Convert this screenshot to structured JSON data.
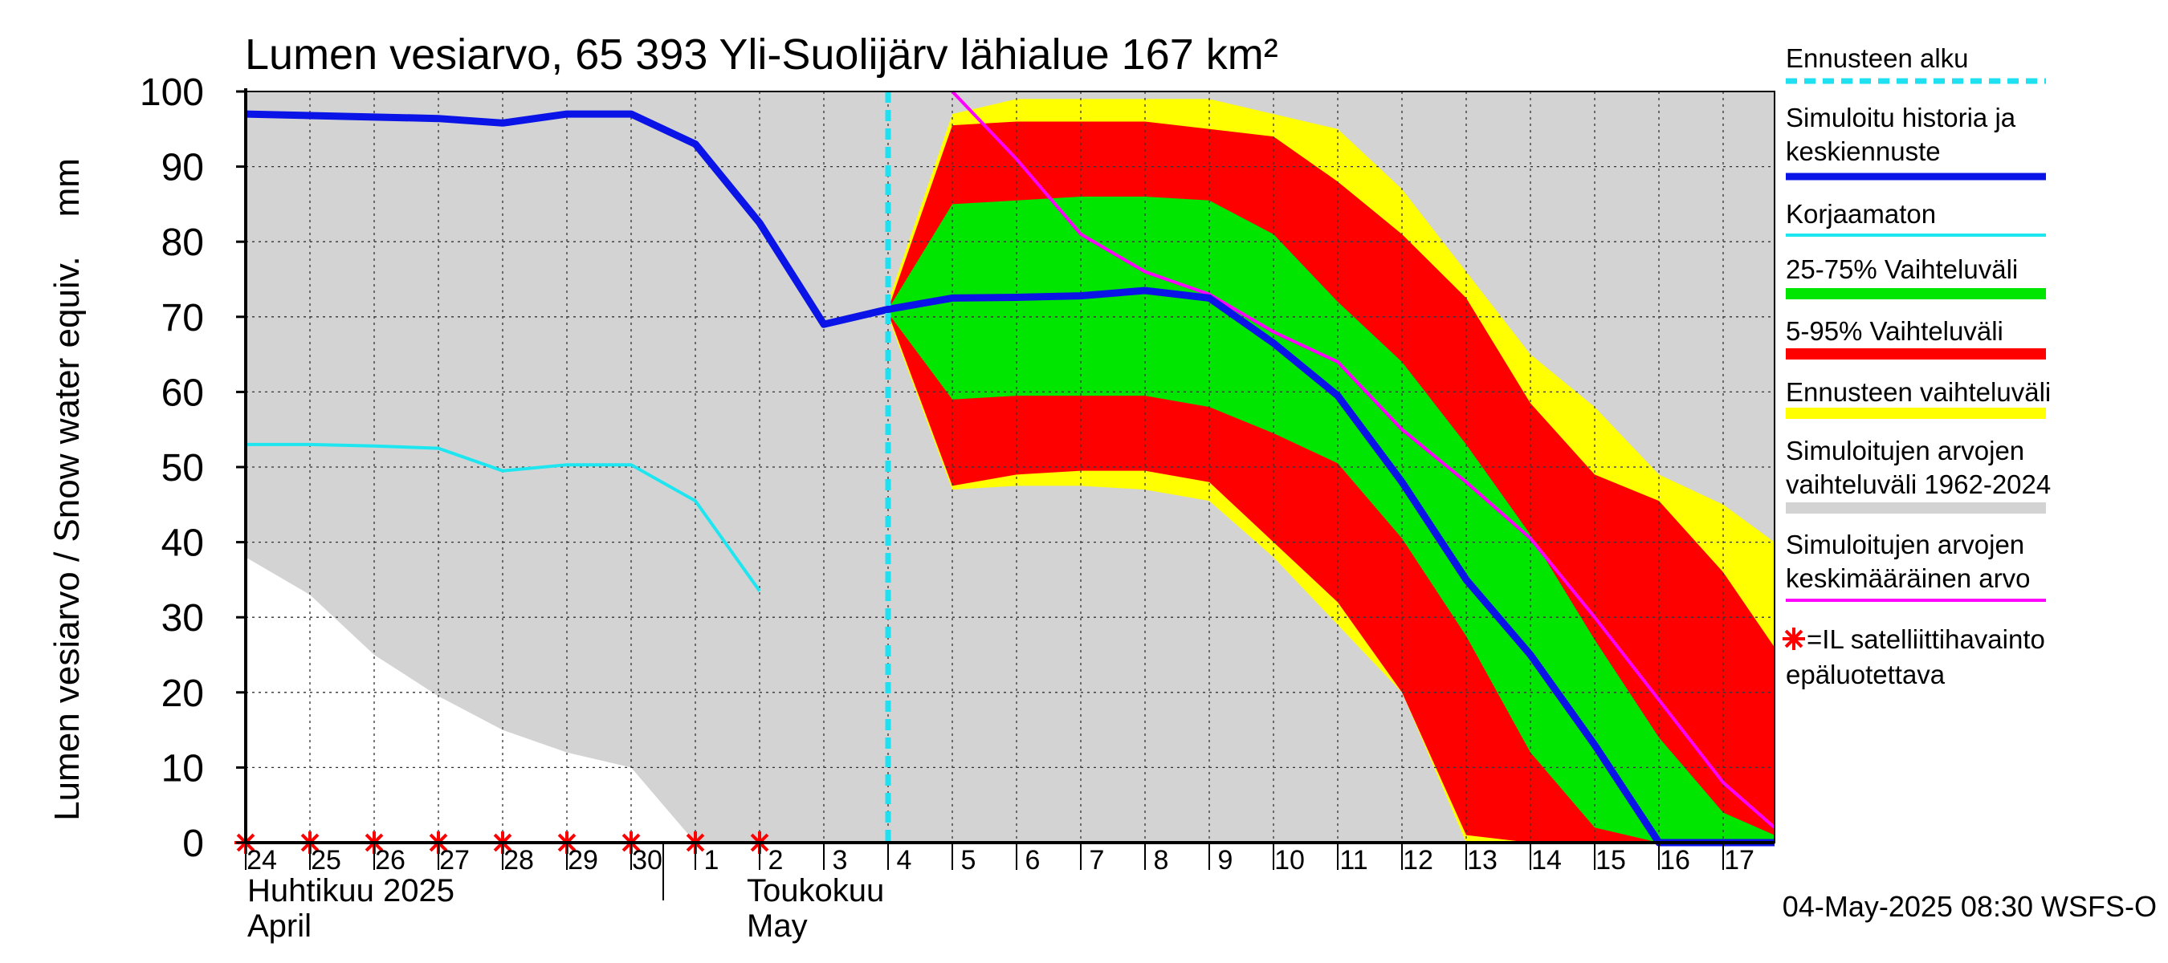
{
  "chart_data": {
    "type": "area",
    "title": "Lumen vesiarvo, 65 393 Yli-Suolijärv lähialue 167 km²",
    "ylabel": "Lumen vesiarvo / Snow water equiv.    mm",
    "ylim": [
      0,
      100
    ],
    "yticks": [
      0,
      10,
      20,
      30,
      40,
      50,
      60,
      70,
      80,
      90,
      100
    ],
    "x_day_labels": [
      "24",
      "25",
      "26",
      "27",
      "28",
      "29",
      "30",
      "1",
      "2",
      "3",
      "4",
      "5",
      "6",
      "7",
      "8",
      "9",
      "10",
      "11",
      "12",
      "13",
      "14",
      "15",
      "16",
      "17"
    ],
    "month_labels": [
      {
        "fi": "Huhtikuu  2025",
        "en": "April"
      },
      {
        "fi": "Toukokuu",
        "en": "May"
      }
    ],
    "forecast_start_x": 10,
    "series": {
      "historical_range": {
        "upper": [
          [
            0,
            100
          ],
          [
            23.8,
            100
          ]
        ],
        "lower": [
          [
            0,
            38
          ],
          [
            1,
            33
          ],
          [
            2,
            25
          ],
          [
            3,
            19.5
          ],
          [
            4,
            15
          ],
          [
            5,
            12
          ],
          [
            6,
            10
          ],
          [
            7,
            0
          ],
          [
            23.8,
            0
          ]
        ]
      },
      "forecast_range_yellow": {
        "upper": [
          [
            10,
            72
          ],
          [
            11,
            97
          ],
          [
            12,
            99
          ],
          [
            13,
            99
          ],
          [
            14,
            99
          ],
          [
            15,
            99
          ],
          [
            16,
            97
          ],
          [
            17,
            95
          ],
          [
            18,
            87
          ],
          [
            19,
            76
          ],
          [
            20,
            65
          ],
          [
            21,
            58
          ],
          [
            22,
            49
          ],
          [
            23,
            45
          ],
          [
            23.8,
            40
          ]
        ],
        "lower": [
          [
            10,
            70
          ],
          [
            11,
            47
          ],
          [
            12,
            47.5
          ],
          [
            13,
            47.5
          ],
          [
            14,
            47
          ],
          [
            15,
            45.5
          ],
          [
            16,
            38
          ],
          [
            17,
            29
          ],
          [
            18,
            20
          ],
          [
            19,
            0
          ],
          [
            23.8,
            0
          ]
        ]
      },
      "range_5_95": {
        "upper": [
          [
            10,
            71
          ],
          [
            11,
            95.5
          ],
          [
            12,
            96
          ],
          [
            13,
            96
          ],
          [
            14,
            96
          ],
          [
            15,
            95
          ],
          [
            16,
            94
          ],
          [
            17,
            88
          ],
          [
            18,
            81
          ],
          [
            19,
            72.5
          ],
          [
            20,
            58.5
          ],
          [
            21,
            49
          ],
          [
            22,
            45.5
          ],
          [
            23,
            36
          ],
          [
            23.8,
            26
          ]
        ],
        "lower": [
          [
            10,
            70.5
          ],
          [
            11,
            47.5
          ],
          [
            12,
            49
          ],
          [
            13,
            49.5
          ],
          [
            14,
            49.5
          ],
          [
            15,
            48
          ],
          [
            16,
            40
          ],
          [
            17,
            32
          ],
          [
            18,
            20
          ],
          [
            19,
            1
          ],
          [
            20,
            0
          ],
          [
            23.8,
            0
          ]
        ]
      },
      "range_25_75": {
        "upper": [
          [
            10,
            71
          ],
          [
            11,
            85
          ],
          [
            12,
            85.5
          ],
          [
            13,
            86
          ],
          [
            14,
            86
          ],
          [
            15,
            85.5
          ],
          [
            16,
            81
          ],
          [
            17,
            72
          ],
          [
            18,
            64
          ],
          [
            19,
            53
          ],
          [
            20,
            41
          ],
          [
            21,
            27
          ],
          [
            22,
            14
          ],
          [
            23,
            4
          ],
          [
            23.8,
            1
          ]
        ],
        "lower": [
          [
            10,
            70.5
          ],
          [
            11,
            59
          ],
          [
            12,
            59.5
          ],
          [
            13,
            59.5
          ],
          [
            14,
            59.5
          ],
          [
            15,
            58
          ],
          [
            16,
            54.5
          ],
          [
            17,
            50.5
          ],
          [
            18,
            40.5
          ],
          [
            19,
            27.5
          ],
          [
            20,
            12
          ],
          [
            21,
            2
          ],
          [
            22,
            0
          ],
          [
            23.8,
            0
          ]
        ]
      },
      "mean_simulated": [
        [
          11,
          100
        ],
        [
          12,
          91
        ],
        [
          13,
          81
        ],
        [
          14,
          76
        ],
        [
          15,
          73
        ],
        [
          16,
          68
        ],
        [
          17,
          64
        ],
        [
          18,
          55
        ],
        [
          19,
          48
        ],
        [
          20,
          40.5
        ],
        [
          21,
          30
        ],
        [
          22,
          19
        ],
        [
          23,
          8
        ],
        [
          23.8,
          2
        ]
      ],
      "uncorrected": [
        [
          0,
          53
        ],
        [
          1,
          53
        ],
        [
          2,
          52.8
        ],
        [
          3,
          52.5
        ],
        [
          4,
          49.5
        ],
        [
          5,
          50.3
        ],
        [
          6,
          50.3
        ],
        [
          7,
          45.5
        ],
        [
          8,
          33.5
        ]
      ],
      "simulated_history": [
        [
          0,
          97
        ],
        [
          1,
          96.8
        ],
        [
          2,
          96.6
        ],
        [
          3,
          96.4
        ],
        [
          4,
          95.8
        ],
        [
          5,
          97
        ],
        [
          6,
          97
        ],
        [
          7,
          93
        ],
        [
          8,
          82.5
        ],
        [
          9,
          69
        ],
        [
          10,
          71
        ],
        [
          11,
          72.5
        ],
        [
          12,
          72.6
        ],
        [
          13,
          72.8
        ],
        [
          14,
          73.5
        ],
        [
          15,
          72.5
        ],
        [
          16,
          66.5
        ],
        [
          17,
          59.5
        ],
        [
          18,
          48
        ],
        [
          19,
          35
        ],
        [
          20,
          25
        ],
        [
          21,
          13
        ],
        [
          22,
          0
        ],
        [
          23.8,
          0
        ]
      ],
      "satellite_obs_x": [
        0,
        1,
        2,
        3,
        4,
        5,
        6,
        7,
        8
      ],
      "satellite_obs_y": 0
    },
    "legend": [
      {
        "label": "Ennusteen alku",
        "color": "#1fe0f0",
        "style": "dashed"
      },
      {
        "label": "Simuloitu historia ja keskiennuste",
        "color": "#0a14e6",
        "style": "thick"
      },
      {
        "label": "Korjaamaton",
        "color": "#1ee6f0",
        "style": "line"
      },
      {
        "label": "25-75% Vaihteluväli",
        "color": "#00e600",
        "style": "band"
      },
      {
        "label": "5-95% Vaihteluväli",
        "color": "#ff0000",
        "style": "band"
      },
      {
        "label": "Ennusteen vaihteluväli",
        "color": "#ffff00",
        "style": "band"
      },
      {
        "label": "Simuloitujen arvojen vaihteluväli 1962-2024",
        "color": "#d3d3d3",
        "style": "band"
      },
      {
        "label": "Simuloitujen arvojen keskimääräinen arvo",
        "color": "#ff00ff",
        "style": "line"
      },
      {
        "label": "=IL satelliittihavainto epäluotettava",
        "color": "#ff0000",
        "style": "star"
      }
    ],
    "footer": "04-May-2025 08:30 WSFS-O"
  },
  "colors": {
    "gray": "#d3d3d3",
    "yellow": "#ffff00",
    "red": "#ff0000",
    "green": "#00e600",
    "blue": "#0a14e6",
    "cyan": "#1ee6f0",
    "magenta": "#ff00ff"
  }
}
